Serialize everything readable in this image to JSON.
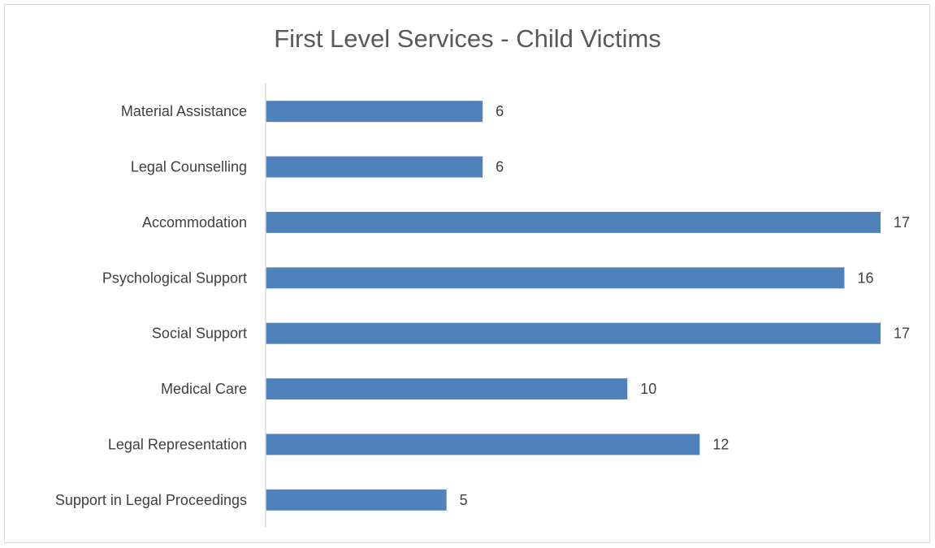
{
  "chart_data": {
    "type": "bar",
    "orientation": "horizontal",
    "title": "First Level Services - Child Victims",
    "xlabel": "",
    "ylabel": "",
    "categories": [
      "Material Assistance",
      "Legal Counselling",
      "Accommodation",
      "Psychological Support",
      "Social Support",
      "Medical Care",
      "Legal Representation",
      "Support in Legal Proceedings"
    ],
    "values": [
      6,
      6,
      17,
      16,
      17,
      10,
      12,
      5
    ],
    "xlim": [
      0,
      17
    ],
    "grid": false,
    "legend": "none",
    "data_labels": true,
    "bar_color": "#4f81bd",
    "axis_color": "#d9d9d9"
  }
}
